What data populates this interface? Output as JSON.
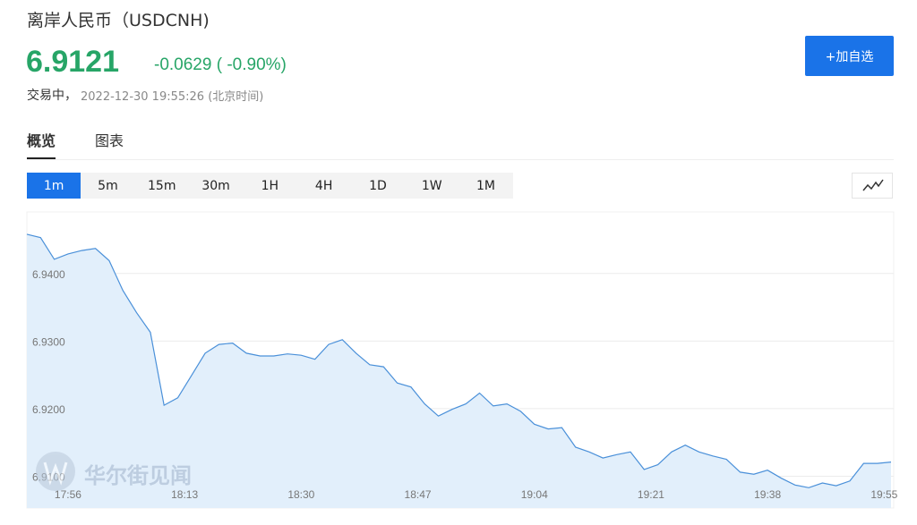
{
  "header": {
    "title": "离岸人民币（USDCNH)",
    "price": "6.9121",
    "change": "-0.0629 ( -0.90%)",
    "status": "交易中，",
    "timestamp": "2022-12-30 19:55:26 (北京时间)",
    "button": "+加自选"
  },
  "tabs": [
    "概览",
    "图表"
  ],
  "intervals": [
    "1m",
    "5m",
    "15m",
    "30m",
    "1H",
    "4H",
    "1D",
    "1W",
    "1M"
  ],
  "watermark": "华尔街见闻",
  "chart_data": {
    "type": "area",
    "color": "#4a90d9",
    "fill": "#e2effb",
    "grid": true,
    "x": [
      "17:50",
      "17:52",
      "17:54",
      "17:56",
      "17:58",
      "18:00",
      "18:02",
      "18:04",
      "18:06",
      "18:08",
      "18:10",
      "18:12",
      "18:14",
      "18:16",
      "18:18",
      "18:20",
      "18:22",
      "18:24",
      "18:26",
      "18:28",
      "18:30",
      "18:32",
      "18:34",
      "18:36",
      "18:38",
      "18:40",
      "18:42",
      "18:44",
      "18:46",
      "18:48",
      "18:50",
      "18:52",
      "18:54",
      "18:56",
      "18:58",
      "19:00",
      "19:02",
      "19:04",
      "19:06",
      "19:08",
      "19:10",
      "19:12",
      "19:14",
      "19:16",
      "19:18",
      "19:20",
      "19:22",
      "19:24",
      "19:26",
      "19:28",
      "19:30",
      "19:32",
      "19:34",
      "19:36",
      "19:38",
      "19:40",
      "19:42",
      "19:44",
      "19:46",
      "19:48",
      "19:50",
      "19:52",
      "19:54",
      "19:56"
    ],
    "values": [
      6.9458,
      6.9453,
      6.9421,
      6.9429,
      6.9434,
      6.9437,
      6.9419,
      6.9375,
      6.9342,
      6.9313,
      6.9205,
      6.9216,
      6.9249,
      6.9282,
      6.9295,
      6.9297,
      6.9282,
      6.9278,
      6.9278,
      6.9281,
      6.9279,
      6.9273,
      6.9295,
      6.9302,
      6.9282,
      6.9265,
      6.9262,
      6.9238,
      6.9232,
      6.9207,
      6.9189,
      6.9199,
      6.9207,
      6.9223,
      6.9204,
      6.9207,
      6.9196,
      6.9177,
      6.917,
      6.9172,
      6.9143,
      6.9136,
      6.9127,
      6.9132,
      6.9136,
      6.911,
      6.9117,
      6.9136,
      6.9146,
      6.9136,
      6.913,
      6.9125,
      6.9106,
      6.9103,
      6.9109,
      6.9097,
      6.9087,
      6.9083,
      6.909,
      6.9086,
      6.9093,
      6.9119,
      6.9119,
      6.9121
    ],
    "xlim": [
      "17:50",
      "19:56"
    ],
    "xticks": [
      "17:56",
      "18:13",
      "18:30",
      "18:47",
      "19:04",
      "19:21",
      "19:38",
      "19:55"
    ],
    "ylim": [
      6.9053,
      6.9491
    ],
    "yticks": [
      {
        "value": 6.91,
        "label": "6.9100"
      },
      {
        "value": 6.92,
        "label": "6.9200"
      },
      {
        "value": 6.93,
        "label": "6.9300"
      },
      {
        "value": 6.94,
        "label": "6.9400"
      }
    ]
  }
}
